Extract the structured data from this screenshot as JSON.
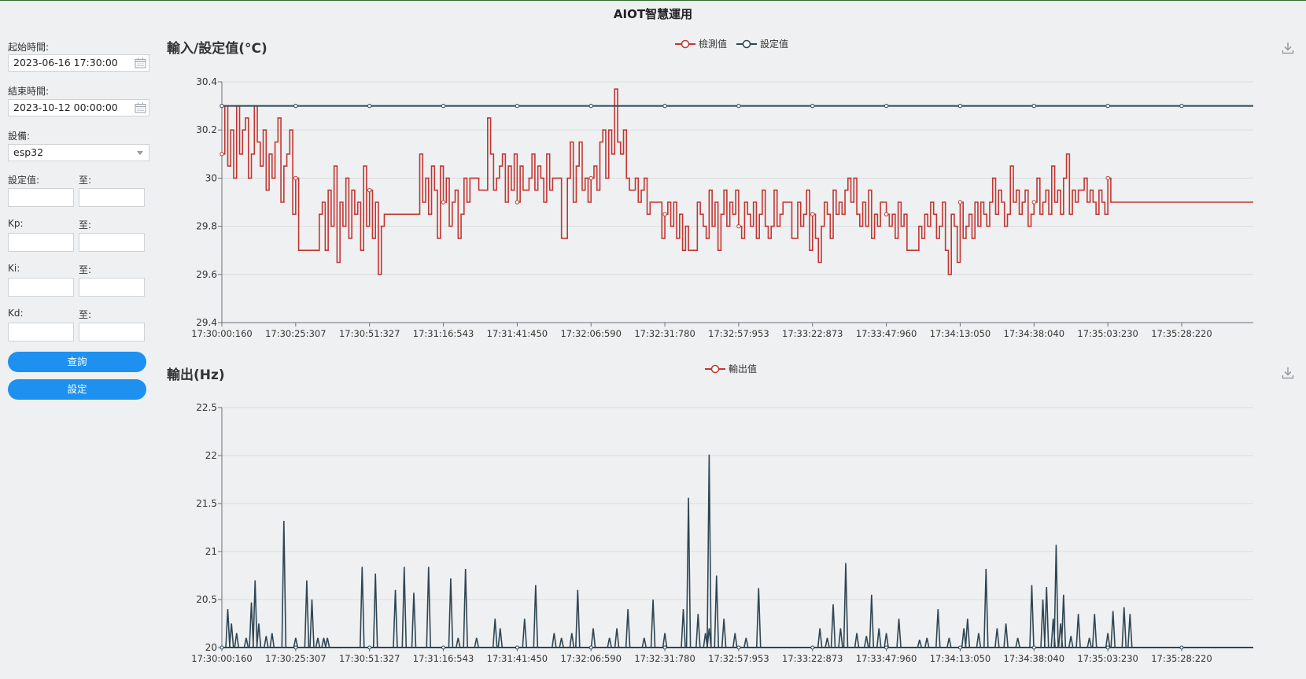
{
  "app_title": "AIOT智慧運用",
  "sidebar": {
    "start_label": "起始時間:",
    "start_value": "2023-06-16 17:30:00",
    "end_label": "結束時間:",
    "end_value": "2023-10-12 00:00:00",
    "device_label": "設備:",
    "device_value": "esp32",
    "setpoint_label": "設定值:",
    "to_label": "至:",
    "kp_label": "Kp:",
    "ki_label": "Ki:",
    "kd_label": "Kd:",
    "query_button": "查詢",
    "set_button": "設定"
  },
  "colors": {
    "measured": "#c23531",
    "setpoint": "#2f4554",
    "output": "#2f4554",
    "button": "#1e90ef"
  },
  "chart_data": [
    {
      "type": "line",
      "title": "輸入/設定值(°C)",
      "xlabel": "",
      "ylabel": "",
      "ylim": [
        29.4,
        30.4
      ],
      "yticks": [
        "29.4",
        "29.6",
        "29.8",
        "30",
        "30.2",
        "30.4"
      ],
      "ytick_values": [
        29.4,
        29.6,
        29.8,
        30,
        30.2,
        30.4
      ],
      "x_tick_labels": [
        "17:30:00:160",
        "17:30:25:307",
        "17:30:51:327",
        "17:31:16:543",
        "17:31:41:450",
        "17:32:06:590",
        "17:32:31:780",
        "17:32:57:953",
        "17:33:22:873",
        "17:33:47:960",
        "17:34:13:050",
        "17:34:38:040",
        "17:35:03:230",
        "17:35:28:220"
      ],
      "x_ticks_span": 13.97,
      "legend": "top-center",
      "grid": true,
      "series": [
        {
          "name": "檢測值",
          "color": "#c23531",
          "x_step": 0.04,
          "values": [
            30.1,
            30.3,
            30.05,
            30.2,
            30.0,
            30.3,
            30.1,
            30.2,
            30.25,
            30.0,
            30.1,
            30.3,
            30.15,
            30.05,
            30.2,
            29.95,
            30.1,
            30.0,
            30.15,
            30.25,
            29.9,
            30.05,
            30.1,
            30.2,
            29.85,
            30.0,
            29.7,
            29.7,
            29.7,
            29.7,
            29.7,
            29.7,
            29.7,
            29.85,
            29.9,
            29.7,
            29.95,
            29.8,
            30.05,
            29.65,
            29.9,
            29.8,
            30.0,
            29.75,
            29.95,
            29.85,
            29.9,
            29.7,
            30.05,
            29.8,
            29.95,
            29.75,
            29.9,
            29.6,
            29.8,
            29.85,
            29.85,
            29.85,
            29.85,
            29.85,
            29.85,
            29.85,
            29.85,
            29.85,
            29.85,
            29.85,
            29.85,
            30.1,
            29.9,
            30.0,
            29.85,
            30.05,
            29.95,
            29.75,
            30.05,
            29.9,
            30.0,
            29.8,
            29.9,
            29.95,
            29.75,
            29.85,
            30.0,
            29.9,
            30.0,
            30.0,
            30.0,
            29.95,
            29.95,
            29.95,
            30.25,
            30.1,
            29.95,
            30.0,
            30.05,
            30.1,
            29.9,
            30.05,
            29.95,
            30.1,
            29.9,
            30.05,
            29.95,
            29.95,
            30.0,
            30.1,
            29.95,
            30.05,
            30.0,
            29.9,
            30.1,
            29.95,
            30.0,
            30.0,
            30.0,
            29.75,
            29.75,
            30.0,
            30.15,
            29.9,
            30.05,
            30.15,
            29.95,
            30.0,
            29.9,
            30.0,
            30.05,
            29.95,
            30.15,
            30.2,
            30.0,
            30.2,
            30.1,
            30.37,
            30.15,
            30.1,
            30.2,
            30.0,
            29.95,
            29.95,
            30.0,
            29.9,
            29.95,
            30.0,
            29.85,
            29.9,
            29.9,
            29.9,
            29.9,
            29.75,
            29.85,
            29.9,
            29.8,
            29.9,
            29.75,
            29.85,
            29.7,
            29.8,
            29.7,
            29.7,
            29.7,
            29.9,
            29.85,
            29.8,
            29.75,
            29.95,
            29.8,
            29.9,
            29.7,
            29.85,
            29.95,
            29.8,
            29.9,
            29.85,
            29.95,
            29.8,
            29.75,
            29.9,
            29.85,
            29.8,
            29.9,
            29.75,
            29.85,
            29.95,
            29.8,
            29.75,
            29.8,
            29.95,
            29.8,
            29.85,
            29.9,
            29.9,
            29.9,
            29.75,
            29.75,
            29.9,
            29.8,
            29.85,
            29.95,
            29.7,
            29.85,
            29.75,
            29.65,
            29.8,
            29.9,
            29.85,
            29.75,
            29.95,
            29.85,
            29.9,
            29.85,
            29.95,
            30.0,
            29.9,
            30.0,
            29.85,
            29.8,
            29.9,
            29.8,
            29.95,
            29.75,
            29.85,
            29.8,
            29.9,
            29.9,
            29.85,
            29.8,
            29.85,
            29.75,
            29.9,
            29.8,
            29.85,
            29.7,
            29.7,
            29.7,
            29.7,
            29.8,
            29.75,
            29.85,
            29.8,
            29.9,
            29.85,
            29.75,
            29.8,
            29.9,
            29.7,
            29.6,
            29.85,
            29.8,
            29.65,
            29.9,
            29.75,
            29.8,
            29.85,
            29.75,
            29.9,
            29.8,
            29.9,
            29.85,
            29.8,
            29.9,
            30.0,
            29.85,
            29.95,
            29.9,
            29.8,
            29.85,
            30.05,
            29.9,
            29.95,
            29.85,
            29.9,
            29.95,
            29.8,
            29.85,
            29.9,
            30.0,
            29.85,
            29.9,
            29.95,
            29.85,
            30.05,
            29.9,
            29.95,
            29.85,
            30.0,
            30.1,
            29.85,
            29.95,
            29.9,
            29.95,
            29.95,
            30.0,
            29.9,
            29.95,
            29.9,
            29.85,
            29.95,
            29.9,
            29.85,
            30.0,
            29.9
          ],
          "open_markers_every": 25
        },
        {
          "name": "設定值",
          "color": "#2f4554",
          "x_step": 1.0,
          "values": [
            30.3,
            30.3,
            30.3,
            30.3,
            30.3,
            30.3,
            30.3,
            30.3,
            30.3,
            30.3,
            30.3,
            30.3,
            30.3,
            30.3
          ]
        }
      ]
    },
    {
      "type": "line",
      "title": "輸出(Hz)",
      "xlabel": "",
      "ylabel": "",
      "ylim": [
        20,
        22.5
      ],
      "yticks": [
        "20",
        "20.5",
        "21",
        "21.5",
        "22",
        "22.5"
      ],
      "ytick_values": [
        20,
        20.5,
        21,
        21.5,
        22,
        22.5
      ],
      "x_tick_labels": [
        "17:30:00:160",
        "17:30:25:307",
        "17:30:51:327",
        "17:31:16:543",
        "17:31:41:450",
        "17:32:06:590",
        "17:32:31:780",
        "17:32:57:953",
        "17:33:22:873",
        "17:33:47:960",
        "17:34:13:050",
        "17:34:38:040",
        "17:35:03:230",
        "17:35:28:220"
      ],
      "x_ticks_span": 13.97,
      "legend": "top-center",
      "grid": true,
      "series": [
        {
          "name": "輸出值",
          "color": "#2f4554",
          "spikes": [
            [
              0.08,
              20.4
            ],
            [
              0.13,
              20.25
            ],
            [
              0.2,
              20.15
            ],
            [
              0.33,
              20.1
            ],
            [
              0.4,
              20.47
            ],
            [
              0.45,
              20.7
            ],
            [
              0.5,
              20.25
            ],
            [
              0.6,
              20.12
            ],
            [
              0.68,
              20.15
            ],
            [
              0.83,
              1e-09
            ],
            [
              0.84,
              21.32
            ],
            [
              1.0,
              20.1
            ],
            [
              1.15,
              20.7
            ],
            [
              1.22,
              20.5
            ],
            [
              1.3,
              20.1
            ],
            [
              1.38,
              20.1
            ],
            [
              1.43,
              20.1
            ],
            [
              1.9,
              20.84
            ],
            [
              2.08,
              20.77
            ],
            [
              2.35,
              20.6
            ],
            [
              2.47,
              20.84
            ],
            [
              2.6,
              20.57
            ],
            [
              2.8,
              20.84
            ],
            [
              3.1,
              20.72
            ],
            [
              3.2,
              20.1
            ],
            [
              3.3,
              20.82
            ],
            [
              3.45,
              20.1
            ],
            [
              3.7,
              20.3
            ],
            [
              3.77,
              20.2
            ],
            [
              4.1,
              20.3
            ],
            [
              4.25,
              20.65
            ],
            [
              4.5,
              20.15
            ],
            [
              4.6,
              20.1
            ],
            [
              4.74,
              20.15
            ],
            [
              4.82,
              20.6
            ],
            [
              5.03,
              20.2
            ],
            [
              5.25,
              20.1
            ],
            [
              5.35,
              20.2
            ],
            [
              5.5,
              20.4
            ],
            [
              5.72,
              20.1
            ],
            [
              5.84,
              20.5
            ],
            [
              6.0,
              20.15
            ],
            [
              6.25,
              20.4
            ],
            [
              6.32,
              21.56
            ],
            [
              6.45,
              20.35
            ],
            [
              6.55,
              20.15
            ],
            [
              6.6,
              20.2
            ],
            [
              6.6,
              22.01
            ],
            [
              6.7,
              20.75
            ],
            [
              6.8,
              20.3
            ],
            [
              6.95,
              20.15
            ],
            [
              7.1,
              20.1
            ],
            [
              7.27,
              20.62
            ],
            [
              7.35,
              1e-09
            ],
            [
              8.1,
              20.2
            ],
            [
              8.2,
              20.1
            ],
            [
              8.28,
              20.45
            ],
            [
              8.38,
              20.2
            ],
            [
              8.45,
              20.88
            ],
            [
              8.6,
              20.15
            ],
            [
              8.73,
              20.12
            ],
            [
              8.8,
              20.55
            ],
            [
              8.9,
              20.2
            ],
            [
              9.0,
              20.15
            ],
            [
              9.17,
              20.3
            ],
            [
              9.45,
              20.08
            ],
            [
              9.55,
              20.1
            ],
            [
              9.7,
              20.4
            ],
            [
              9.85,
              20.1
            ],
            [
              10.05,
              20.2
            ],
            [
              10.1,
              20.3
            ],
            [
              10.25,
              20.15
            ],
            [
              10.35,
              20.82
            ],
            [
              10.5,
              20.2
            ],
            [
              10.62,
              20.25
            ],
            [
              10.78,
              20.1
            ],
            [
              10.97,
              20.65
            ],
            [
              11.12,
              20.5
            ],
            [
              11.17,
              20.63
            ],
            [
              11.26,
              20.3
            ],
            [
              11.3,
              21.07
            ],
            [
              11.36,
              20.25
            ],
            [
              11.4,
              20.55
            ],
            [
              11.5,
              20.12
            ],
            [
              11.6,
              20.35
            ],
            [
              11.75,
              20.1
            ],
            [
              11.82,
              20.35
            ],
            [
              12.0,
              20.15
            ],
            [
              12.07,
              20.38
            ],
            [
              12.22,
              20.42
            ],
            [
              12.3,
              20.35
            ]
          ],
          "open_markers_every": 1
        }
      ]
    }
  ]
}
